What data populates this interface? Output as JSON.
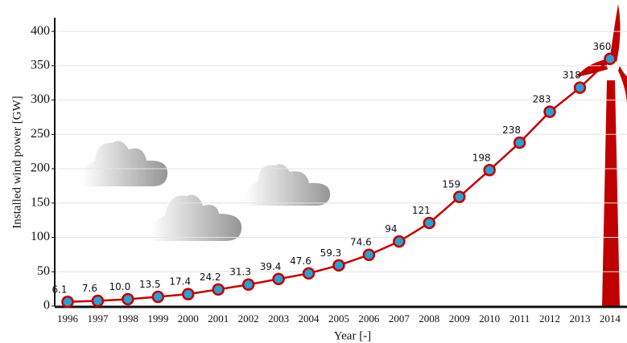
{
  "chart_data": {
    "type": "line",
    "x_label": "Year [-]",
    "y_label": "Installed  wind power [GW]",
    "categories": [
      "1996",
      "1997",
      "1998",
      "1999",
      "2000",
      "2001",
      "2002",
      "2003",
      "2004",
      "2005",
      "2006",
      "2007",
      "2008",
      "2009",
      "2010",
      "2011",
      "2012",
      "2013",
      "2014"
    ],
    "series": [
      {
        "color": "#c00000",
        "values": [
          6.1,
          7.6,
          10.0,
          13.5,
          17.4,
          24.2,
          31.3,
          39.4,
          47.6,
          59.3,
          74.6,
          94,
          121,
          159,
          198,
          238,
          283,
          318,
          360
        ],
        "value_labels": [
          "6.1",
          "7.6",
          "10.0",
          "13.5",
          "17.4",
          "24.2",
          "31.3",
          "39.4",
          "47.6",
          "59.3",
          "74.6",
          "94",
          "121",
          "159",
          "198",
          "238",
          "283",
          "318",
          "360"
        ]
      }
    ],
    "marker_color": "#2e9fd0",
    "ylim": [
      0,
      420
    ],
    "yticks": [
      0,
      50,
      100,
      150,
      200,
      250,
      300,
      350,
      400
    ],
    "grid": true
  }
}
